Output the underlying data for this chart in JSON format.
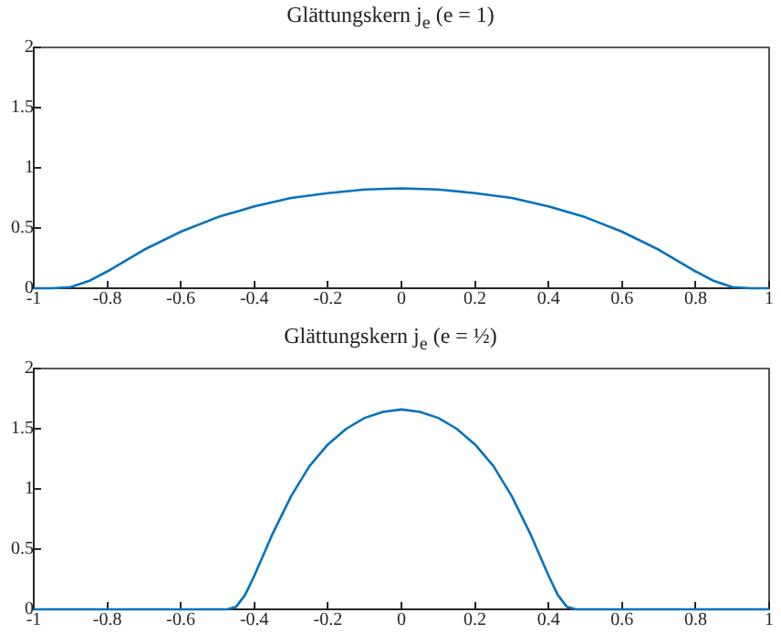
{
  "chart_data": [
    {
      "type": "line",
      "title": "Glättungskern j$_{e}$ (e = 1)",
      "xlim": [
        -1,
        1
      ],
      "xticks": [
        -1,
        -0.8,
        -0.6,
        -0.4,
        -0.2,
        0,
        0.2,
        0.4,
        0.6,
        0.8,
        1
      ],
      "ylim": [
        0,
        2
      ],
      "yticks": [
        0,
        0.5,
        1,
        1.5,
        2
      ],
      "series": [
        {
          "color": "#0072bd",
          "x": [
            -1,
            -0.95,
            -0.9,
            -0.85,
            -0.8,
            -0.7,
            -0.6,
            -0.5,
            -0.4,
            -0.3,
            -0.2,
            -0.1,
            0,
            0.1,
            0.2,
            0.3,
            0.4,
            0.5,
            0.6,
            0.7,
            0.8,
            0.85,
            0.9,
            0.95,
            1
          ],
          "values": [
            0,
            0,
            0.01,
            0.06,
            0.14,
            0.32,
            0.47,
            0.59,
            0.68,
            0.75,
            0.79,
            0.82,
            0.83,
            0.82,
            0.79,
            0.75,
            0.68,
            0.59,
            0.47,
            0.32,
            0.14,
            0.06,
            0.01,
            0,
            0
          ]
        }
      ]
    },
    {
      "type": "line",
      "title": "Glättungskern j$_{e}$ (e = ½)",
      "xlim": [
        -1,
        1
      ],
      "xticks": [
        -1,
        -0.8,
        -0.6,
        -0.4,
        -0.2,
        0,
        0.2,
        0.4,
        0.6,
        0.8,
        1
      ],
      "ylim": [
        0,
        2
      ],
      "yticks": [
        0,
        0.5,
        1,
        1.5,
        2
      ],
      "series": [
        {
          "color": "#0072bd",
          "x": [
            -1,
            -0.5,
            -0.475,
            -0.45,
            -0.425,
            -0.4,
            -0.35,
            -0.3,
            -0.25,
            -0.2,
            -0.15,
            -0.1,
            -0.05,
            0,
            0.05,
            0.1,
            0.15,
            0.2,
            0.25,
            0.3,
            0.35,
            0.4,
            0.425,
            0.45,
            0.475,
            0.5,
            1
          ],
          "values": [
            0,
            0,
            0,
            0.02,
            0.12,
            0.28,
            0.63,
            0.94,
            1.19,
            1.37,
            1.5,
            1.59,
            1.64,
            1.66,
            1.64,
            1.59,
            1.5,
            1.37,
            1.19,
            0.94,
            0.63,
            0.28,
            0.12,
            0.02,
            0,
            0,
            0
          ]
        }
      ]
    }
  ]
}
